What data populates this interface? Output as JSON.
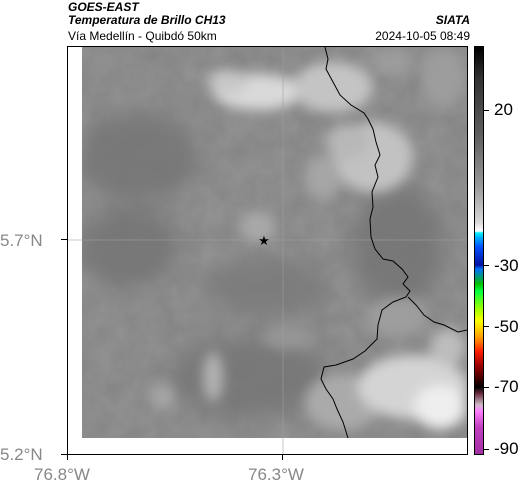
{
  "header": {
    "satellite": "GOES-EAST",
    "product": "Temperatura de Brillo CH13",
    "location": "Vía Medellín - Quibdó 50km",
    "organization": "SIATA",
    "timestamp": "2024-10-05 08:49"
  },
  "axes": {
    "y_ticks": [
      "5.7°N",
      "5.2°N"
    ],
    "x_ticks": [
      "76.8°W",
      "76.3°W"
    ]
  },
  "colorbar": {
    "labels": [
      "20",
      "-30",
      "-50",
      "-70",
      "-90"
    ]
  },
  "map": {
    "marker": "star-icon"
  }
}
